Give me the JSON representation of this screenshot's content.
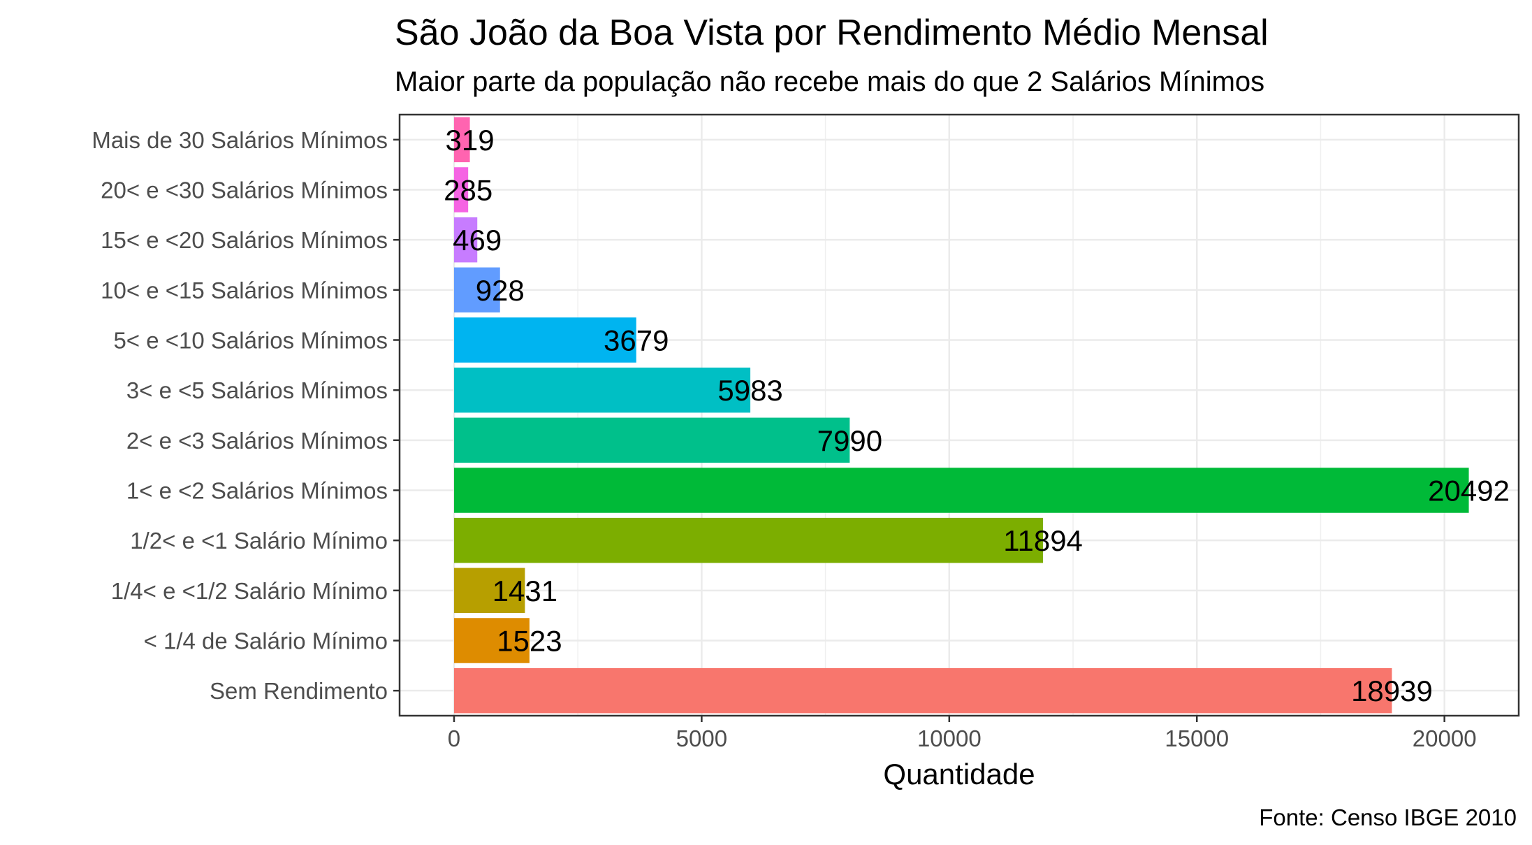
{
  "chart_data": {
    "type": "bar",
    "orientation": "horizontal",
    "title": "São João da Boa Vista por Rendimento Médio Mensal",
    "subtitle": "Maior parte da população não recebe mais do que 2 Salários Mínimos",
    "xlabel": "Quantidade",
    "ylabel": "",
    "caption": "Fonte: Censo IBGE 2010",
    "xlim": [
      -1100,
      21500
    ],
    "xticks": [
      0,
      5000,
      10000,
      15000,
      20000
    ],
    "xtick_labels": [
      "0",
      "5000",
      "10000",
      "15000",
      "20000"
    ],
    "grid": true,
    "legend": "none",
    "categories": [
      "Sem Rendimento",
      "< 1/4 de Salário Mínimo",
      "1/4< e <1/2 Salário Mínimo",
      "1/2< e <1 Salário Mínimo",
      "1< e <2 Salários Mínimos",
      "2< e <3 Salários Mínimos",
      "3< e <5 Salários Mínimos",
      "5< e <10 Salários Mínimos",
      "10< e <15 Salários Mínimos",
      "15< e <20 Salários Mínimos",
      "20< e <30 Salários Mínimos",
      "Mais de 30 Salários Mínimos"
    ],
    "values": [
      18939,
      1523,
      1431,
      11894,
      20492,
      7990,
      5983,
      3679,
      928,
      469,
      285,
      319
    ],
    "value_labels": [
      "18939",
      "1523",
      "1431",
      "11894",
      "20492",
      "7990",
      "5983",
      "3679",
      "928",
      "469",
      "285",
      "319"
    ],
    "colors": [
      "#F8766D",
      "#DE8C00",
      "#B79F00",
      "#7CAE00",
      "#00BA38",
      "#00C08B",
      "#00BFC4",
      "#00B4F0",
      "#619CFF",
      "#C77CFF",
      "#F564E3",
      "#FF64B0"
    ]
  }
}
